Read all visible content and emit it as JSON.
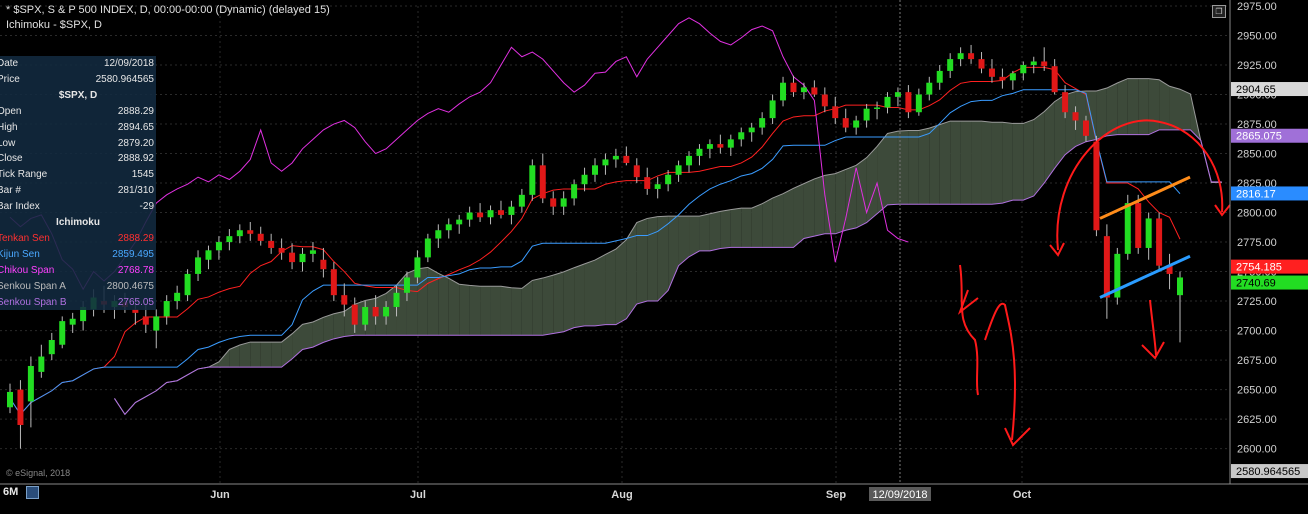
{
  "header": {
    "line1": "* $SPX, S & P 500 INDEX, D, 00:00-00:00 (Dynamic) (delayed 15)",
    "line2": "Ichimoku - $SPX, D"
  },
  "data_panel": {
    "rows": [
      {
        "label": "Date",
        "value": "12/09/2018"
      },
      {
        "label": "Price",
        "value": "2580.964565"
      }
    ],
    "section1": "$SPX, D",
    "ohlc": [
      {
        "label": "Open",
        "value": "2888.29"
      },
      {
        "label": "High",
        "value": "2894.65"
      },
      {
        "label": "Low",
        "value": "2879.20"
      },
      {
        "label": "Close",
        "value": "2888.92"
      },
      {
        "label": "Tick Range",
        "value": "1545"
      },
      {
        "label": "Bar #",
        "value": "281/310"
      },
      {
        "label": "Bar Index",
        "value": "-29"
      }
    ],
    "section2": "Ichimoku",
    "ichimoku": [
      {
        "label": "Tenkan Sen",
        "value": "2888.29",
        "color": "#ff2020"
      },
      {
        "label": "Kijun Sen",
        "value": "2859.495",
        "color": "#3a9cff"
      },
      {
        "label": "Chikou Span",
        "value": "2768.78",
        "color": "#e030e0"
      },
      {
        "label": "Senkou Span A",
        "value": "2800.4675",
        "color": "#b0b0b0"
      },
      {
        "label": "Senkou Span B",
        "value": "2765.05",
        "color": "#b070e0"
      }
    ]
  },
  "footer": {
    "timeframe": "6M",
    "watermark": "© eSignal, 2018",
    "cursor_date": "12/09/2018"
  },
  "colors": {
    "up_candle": "#22dd22",
    "down_candle": "#e01818",
    "tenkan": "#ff2020",
    "kijun": "#3a9cff",
    "chikou": "#e030e0",
    "kumo_bull": "#3d4a3a",
    "kumo_bear": "#4a3a36",
    "annotation": "#ff1a1a",
    "trend_orange": "#ff8c1a",
    "trend_blue": "#2a9cff"
  },
  "chart_data": {
    "type": "candlestick",
    "symbol": "$SPX",
    "interval": "D",
    "ylim": [
      2570,
      2975
    ],
    "y_ticks": [
      2600,
      2625,
      2650,
      2675,
      2700,
      2725,
      2750,
      2775,
      2800,
      2825,
      2850,
      2875,
      2900,
      2925,
      2950,
      2975
    ],
    "x_ticks": [
      "Jun",
      "Jul",
      "Aug",
      "Sep",
      "Oct"
    ],
    "price_labels": [
      {
        "value": 2904.65,
        "text": "2904.65",
        "bg": "#d8d8d8",
        "fg": "#000"
      },
      {
        "value": 2865.075,
        "text": "2865.075",
        "bg": "#a070d8",
        "fg": "#fff"
      },
      {
        "value": 2816.17,
        "text": "2816.17",
        "bg": "#2a8cff",
        "fg": "#fff"
      },
      {
        "value": 2754.185,
        "text": "2754.185",
        "bg": "#ff2020",
        "fg": "#fff"
      },
      {
        "value": 2740.69,
        "text": "2740.69",
        "bg": "#22dd22",
        "fg": "#000"
      },
      {
        "value": 2580.964565,
        "text": "2580.964565",
        "bg": "#c8c8c8",
        "fg": "#000"
      }
    ],
    "candles": [
      [
        2635,
        2655,
        2630,
        2648
      ],
      [
        2650,
        2658,
        2600,
        2620
      ],
      [
        2640,
        2678,
        2618,
        2670
      ],
      [
        2665,
        2688,
        2660,
        2678
      ],
      [
        2680,
        2698,
        2675,
        2692
      ],
      [
        2688,
        2712,
        2685,
        2708
      ],
      [
        2705,
        2715,
        2698,
        2710
      ],
      [
        2708,
        2725,
        2700,
        2720
      ],
      [
        2718,
        2735,
        2712,
        2728
      ],
      [
        2725,
        2738,
        2715,
        2722
      ],
      [
        2720,
        2730,
        2710,
        2725
      ],
      [
        2724,
        2732,
        2715,
        2720
      ],
      [
        2718,
        2728,
        2705,
        2715
      ],
      [
        2712,
        2722,
        2698,
        2705
      ],
      [
        2700,
        2718,
        2685,
        2712
      ],
      [
        2712,
        2730,
        2705,
        2725
      ],
      [
        2725,
        2738,
        2718,
        2732
      ],
      [
        2730,
        2752,
        2725,
        2748
      ],
      [
        2748,
        2768,
        2742,
        2762
      ],
      [
        2760,
        2772,
        2752,
        2768
      ],
      [
        2768,
        2780,
        2760,
        2775
      ],
      [
        2775,
        2786,
        2768,
        2780
      ],
      [
        2780,
        2790,
        2774,
        2785
      ],
      [
        2785,
        2792,
        2776,
        2782
      ],
      [
        2782,
        2788,
        2772,
        2776
      ],
      [
        2776,
        2782,
        2765,
        2770
      ],
      [
        2770,
        2778,
        2760,
        2766
      ],
      [
        2766,
        2774,
        2752,
        2758
      ],
      [
        2758,
        2770,
        2750,
        2765
      ],
      [
        2765,
        2775,
        2758,
        2768
      ],
      [
        2760,
        2770,
        2745,
        2752
      ],
      [
        2752,
        2758,
        2725,
        2730
      ],
      [
        2730,
        2740,
        2712,
        2722
      ],
      [
        2722,
        2728,
        2698,
        2705
      ],
      [
        2705,
        2725,
        2700,
        2720
      ],
      [
        2720,
        2730,
        2705,
        2712
      ],
      [
        2712,
        2725,
        2705,
        2720
      ],
      [
        2720,
        2738,
        2712,
        2732
      ],
      [
        2732,
        2750,
        2725,
        2745
      ],
      [
        2745,
        2768,
        2740,
        2762
      ],
      [
        2762,
        2782,
        2758,
        2778
      ],
      [
        2778,
        2790,
        2770,
        2785
      ],
      [
        2785,
        2795,
        2778,
        2790
      ],
      [
        2790,
        2798,
        2782,
        2794
      ],
      [
        2794,
        2805,
        2788,
        2800
      ],
      [
        2800,
        2808,
        2792,
        2796
      ],
      [
        2796,
        2806,
        2790,
        2802
      ],
      [
        2802,
        2810,
        2795,
        2798
      ],
      [
        2798,
        2810,
        2790,
        2805
      ],
      [
        2805,
        2820,
        2800,
        2815
      ],
      [
        2815,
        2845,
        2810,
        2840
      ],
      [
        2840,
        2850,
        2808,
        2812
      ],
      [
        2812,
        2818,
        2798,
        2805
      ],
      [
        2805,
        2818,
        2798,
        2812
      ],
      [
        2812,
        2828,
        2806,
        2824
      ],
      [
        2824,
        2838,
        2818,
        2832
      ],
      [
        2832,
        2846,
        2826,
        2840
      ],
      [
        2840,
        2850,
        2832,
        2845
      ],
      [
        2845,
        2854,
        2838,
        2848
      ],
      [
        2848,
        2856,
        2840,
        2842
      ],
      [
        2840,
        2846,
        2825,
        2830
      ],
      [
        2830,
        2838,
        2815,
        2820
      ],
      [
        2820,
        2830,
        2812,
        2824
      ],
      [
        2824,
        2836,
        2818,
        2832
      ],
      [
        2832,
        2844,
        2826,
        2840
      ],
      [
        2840,
        2852,
        2834,
        2848
      ],
      [
        2848,
        2858,
        2840,
        2854
      ],
      [
        2854,
        2862,
        2846,
        2858
      ],
      [
        2858,
        2866,
        2850,
        2855
      ],
      [
        2855,
        2866,
        2848,
        2862
      ],
      [
        2862,
        2872,
        2856,
        2868
      ],
      [
        2868,
        2876,
        2860,
        2872
      ],
      [
        2872,
        2885,
        2866,
        2880
      ],
      [
        2880,
        2900,
        2875,
        2895
      ],
      [
        2895,
        2915,
        2890,
        2910
      ],
      [
        2910,
        2916,
        2898,
        2902
      ],
      [
        2902,
        2910,
        2896,
        2906
      ],
      [
        2906,
        2912,
        2898,
        2900
      ],
      [
        2900,
        2906,
        2885,
        2890
      ],
      [
        2890,
        2898,
        2875,
        2880
      ],
      [
        2880,
        2888,
        2868,
        2872
      ],
      [
        2872,
        2882,
        2866,
        2878
      ],
      [
        2878,
        2892,
        2872,
        2888
      ],
      [
        2888,
        2894,
        2879,
        2889
      ],
      [
        2889,
        2902,
        2884,
        2898
      ],
      [
        2898,
        2906,
        2890,
        2902
      ],
      [
        2902,
        2908,
        2880,
        2885
      ],
      [
        2885,
        2905,
        2882,
        2900
      ],
      [
        2900,
        2915,
        2895,
        2910
      ],
      [
        2910,
        2925,
        2904,
        2920
      ],
      [
        2920,
        2935,
        2914,
        2930
      ],
      [
        2930,
        2940,
        2924,
        2935
      ],
      [
        2935,
        2942,
        2926,
        2930
      ],
      [
        2930,
        2936,
        2918,
        2922
      ],
      [
        2922,
        2930,
        2910,
        2915
      ],
      [
        2915,
        2922,
        2905,
        2912
      ],
      [
        2912,
        2920,
        2904,
        2918
      ],
      [
        2918,
        2928,
        2912,
        2925
      ],
      [
        2925,
        2932,
        2918,
        2928
      ],
      [
        2928,
        2940,
        2920,
        2924
      ],
      [
        2924,
        2930,
        2900,
        2902
      ],
      [
        2902,
        2908,
        2880,
        2885
      ],
      [
        2885,
        2890,
        2870,
        2878
      ],
      [
        2878,
        2882,
        2860,
        2865
      ],
      [
        2860,
        2865,
        2780,
        2785
      ],
      [
        2780,
        2790,
        2710,
        2728
      ],
      [
        2728,
        2770,
        2722,
        2765
      ],
      [
        2765,
        2815,
        2760,
        2808
      ],
      [
        2808,
        2815,
        2765,
        2770
      ],
      [
        2770,
        2800,
        2760,
        2795
      ],
      [
        2795,
        2800,
        2750,
        2755
      ],
      [
        2755,
        2765,
        2735,
        2748
      ],
      [
        2730,
        2750,
        2690,
        2745
      ]
    ],
    "annotations": [
      "hand-drawn red downward arrows",
      "red arc over cloud",
      "orange trendline",
      "blue trendline"
    ]
  }
}
